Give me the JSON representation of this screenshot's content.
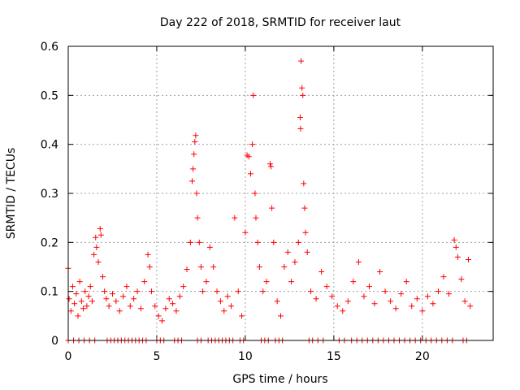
{
  "chart_data": {
    "type": "scatter",
    "title": "Day 222 of 2018, SRMTID for receiver laut",
    "xlabel": "GPS time / hours",
    "ylabel": "SRMTID / TECUs",
    "xlim": [
      0,
      24
    ],
    "ylim": [
      0,
      0.6
    ],
    "x_ticks": [
      "0",
      "5",
      "10",
      "15",
      "20"
    ],
    "y_ticks": [
      "0",
      "0.1",
      "0.2",
      "0.3",
      "0.4",
      "0.5",
      "0.6"
    ],
    "grid": true,
    "marker": "+",
    "series": [
      {
        "name": "SRMTID",
        "color": "#ff0000",
        "points": [
          [
            0.0,
            0.147
          ],
          [
            0.05,
            0.085
          ],
          [
            0.15,
            0.06
          ],
          [
            0.25,
            0.11
          ],
          [
            0.35,
            0.075
          ],
          [
            0.45,
            0.095
          ],
          [
            0.55,
            0.05
          ],
          [
            0.65,
            0.12
          ],
          [
            0.75,
            0.08
          ],
          [
            0.85,
            0.065
          ],
          [
            0.95,
            0.1
          ],
          [
            1.05,
            0.07
          ],
          [
            1.15,
            0.09
          ],
          [
            1.25,
            0.11
          ],
          [
            1.35,
            0.08
          ],
          [
            1.45,
            0.175
          ],
          [
            1.55,
            0.21
          ],
          [
            1.6,
            0.19
          ],
          [
            1.7,
            0.16
          ],
          [
            1.8,
            0.228
          ],
          [
            1.85,
            0.215
          ],
          [
            1.95,
            0.13
          ],
          [
            2.05,
            0.1
          ],
          [
            2.15,
            0.085
          ],
          [
            2.3,
            0.07
          ],
          [
            2.5,
            0.095
          ],
          [
            2.7,
            0.08
          ],
          [
            2.9,
            0.06
          ],
          [
            3.1,
            0.09
          ],
          [
            3.3,
            0.11
          ],
          [
            3.5,
            0.07
          ],
          [
            3.7,
            0.085
          ],
          [
            3.9,
            0.1
          ],
          [
            4.1,
            0.065
          ],
          [
            4.3,
            0.12
          ],
          [
            4.5,
            0.175
          ],
          [
            4.6,
            0.15
          ],
          [
            4.7,
            0.1
          ],
          [
            4.9,
            0.07
          ],
          [
            5.1,
            0.05
          ],
          [
            5.3,
            0.04
          ],
          [
            5.5,
            0.065
          ],
          [
            5.7,
            0.085
          ],
          [
            5.9,
            0.075
          ],
          [
            6.1,
            0.06
          ],
          [
            6.3,
            0.09
          ],
          [
            6.5,
            0.11
          ],
          [
            6.7,
            0.145
          ],
          [
            6.9,
            0.2
          ],
          [
            7.0,
            0.325
          ],
          [
            7.05,
            0.35
          ],
          [
            7.1,
            0.38
          ],
          [
            7.15,
            0.405
          ],
          [
            7.2,
            0.418
          ],
          [
            7.25,
            0.3
          ],
          [
            7.3,
            0.25
          ],
          [
            7.4,
            0.2
          ],
          [
            7.5,
            0.15
          ],
          [
            7.6,
            0.1
          ],
          [
            7.8,
            0.12
          ],
          [
            8.0,
            0.19
          ],
          [
            8.2,
            0.15
          ],
          [
            8.4,
            0.1
          ],
          [
            8.6,
            0.08
          ],
          [
            8.8,
            0.06
          ],
          [
            9.0,
            0.09
          ],
          [
            9.2,
            0.07
          ],
          [
            9.4,
            0.25
          ],
          [
            9.6,
            0.1
          ],
          [
            9.8,
            0.05
          ],
          [
            10.0,
            0.22
          ],
          [
            10.1,
            0.378
          ],
          [
            10.2,
            0.375
          ],
          [
            10.3,
            0.34
          ],
          [
            10.4,
            0.4
          ],
          [
            10.45,
            0.5
          ],
          [
            10.55,
            0.3
          ],
          [
            10.6,
            0.25
          ],
          [
            10.7,
            0.2
          ],
          [
            10.8,
            0.15
          ],
          [
            11.0,
            0.1
          ],
          [
            11.2,
            0.12
          ],
          [
            11.4,
            0.36
          ],
          [
            11.45,
            0.355
          ],
          [
            11.5,
            0.27
          ],
          [
            11.6,
            0.2
          ],
          [
            11.8,
            0.08
          ],
          [
            12.0,
            0.05
          ],
          [
            12.2,
            0.15
          ],
          [
            12.4,
            0.18
          ],
          [
            12.6,
            0.12
          ],
          [
            12.8,
            0.16
          ],
          [
            13.0,
            0.2
          ],
          [
            13.1,
            0.455
          ],
          [
            13.12,
            0.432
          ],
          [
            13.15,
            0.57
          ],
          [
            13.2,
            0.515
          ],
          [
            13.25,
            0.5
          ],
          [
            13.3,
            0.32
          ],
          [
            13.35,
            0.27
          ],
          [
            13.4,
            0.22
          ],
          [
            13.5,
            0.18
          ],
          [
            13.7,
            0.1
          ],
          [
            14.0,
            0.085
          ],
          [
            14.3,
            0.14
          ],
          [
            14.6,
            0.11
          ],
          [
            14.9,
            0.09
          ],
          [
            15.2,
            0.07
          ],
          [
            15.5,
            0.06
          ],
          [
            15.8,
            0.08
          ],
          [
            16.1,
            0.12
          ],
          [
            16.4,
            0.16
          ],
          [
            16.7,
            0.09
          ],
          [
            17.0,
            0.11
          ],
          [
            17.3,
            0.075
          ],
          [
            17.6,
            0.14
          ],
          [
            17.9,
            0.1
          ],
          [
            18.2,
            0.08
          ],
          [
            18.5,
            0.065
          ],
          [
            18.8,
            0.095
          ],
          [
            19.1,
            0.12
          ],
          [
            19.4,
            0.07
          ],
          [
            19.7,
            0.085
          ],
          [
            20.0,
            0.06
          ],
          [
            20.3,
            0.09
          ],
          [
            20.6,
            0.075
          ],
          [
            20.9,
            0.1
          ],
          [
            21.2,
            0.13
          ],
          [
            21.5,
            0.095
          ],
          [
            21.8,
            0.205
          ],
          [
            21.9,
            0.19
          ],
          [
            22.0,
            0.17
          ],
          [
            22.2,
            0.125
          ],
          [
            22.4,
            0.08
          ],
          [
            22.6,
            0.165
          ],
          [
            22.7,
            0.07
          ],
          [
            0.0,
            0.0
          ],
          [
            0.3,
            0.0
          ],
          [
            0.6,
            0.0
          ],
          [
            0.9,
            0.0
          ],
          [
            1.2,
            0.0
          ],
          [
            1.5,
            0.0
          ],
          [
            2.2,
            0.0
          ],
          [
            2.4,
            0.0
          ],
          [
            2.6,
            0.0
          ],
          [
            2.8,
            0.0
          ],
          [
            3.0,
            0.0
          ],
          [
            3.2,
            0.0
          ],
          [
            3.4,
            0.0
          ],
          [
            3.6,
            0.0
          ],
          [
            3.8,
            0.0
          ],
          [
            4.0,
            0.0
          ],
          [
            4.2,
            0.0
          ],
          [
            4.4,
            0.0
          ],
          [
            5.0,
            0.0
          ],
          [
            5.2,
            0.0
          ],
          [
            5.4,
            0.0
          ],
          [
            6.0,
            0.0
          ],
          [
            6.2,
            0.0
          ],
          [
            6.4,
            0.0
          ],
          [
            7.3,
            0.0
          ],
          [
            7.5,
            0.0
          ],
          [
            7.9,
            0.0
          ],
          [
            8.1,
            0.0
          ],
          [
            8.3,
            0.0
          ],
          [
            8.5,
            0.0
          ],
          [
            8.7,
            0.0
          ],
          [
            8.9,
            0.0
          ],
          [
            9.1,
            0.0
          ],
          [
            9.3,
            0.0
          ],
          [
            9.7,
            0.0
          ],
          [
            9.9,
            0.0
          ],
          [
            10.9,
            0.0
          ],
          [
            11.1,
            0.0
          ],
          [
            11.3,
            0.0
          ],
          [
            11.7,
            0.0
          ],
          [
            11.9,
            0.0
          ],
          [
            12.1,
            0.0
          ],
          [
            13.6,
            0.0
          ],
          [
            13.8,
            0.0
          ],
          [
            14.1,
            0.0
          ],
          [
            14.4,
            0.0
          ],
          [
            15.3,
            0.0
          ],
          [
            15.6,
            0.0
          ],
          [
            16.0,
            0.0
          ],
          [
            16.3,
            0.0
          ],
          [
            16.6,
            0.0
          ],
          [
            16.9,
            0.0
          ],
          [
            17.2,
            0.0
          ],
          [
            17.5,
            0.0
          ],
          [
            17.8,
            0.0
          ],
          [
            18.1,
            0.0
          ],
          [
            18.4,
            0.0
          ],
          [
            18.7,
            0.0
          ],
          [
            19.0,
            0.0
          ],
          [
            19.3,
            0.0
          ],
          [
            19.6,
            0.0
          ],
          [
            19.9,
            0.0
          ],
          [
            20.2,
            0.0
          ],
          [
            20.5,
            0.0
          ],
          [
            20.8,
            0.0
          ],
          [
            21.1,
            0.0
          ],
          [
            21.4,
            0.0
          ],
          [
            21.7,
            0.0
          ],
          [
            22.3,
            0.0
          ],
          [
            22.5,
            0.0
          ]
        ]
      }
    ]
  }
}
